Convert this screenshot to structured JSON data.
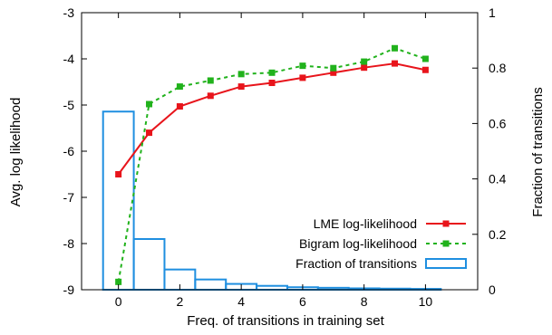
{
  "chart_data": {
    "type": "line",
    "xlabel": "Freq. of transitions in training set",
    "ylabel_left": "Avg. log likelihood",
    "ylabel_right": "Fraction of transitions",
    "xlim": [
      -1.2,
      11.7
    ],
    "ylim_left": [
      -9,
      -3
    ],
    "ylim_right": [
      0,
      1
    ],
    "x_ticks": [
      "0",
      "2",
      "4",
      "6",
      "8",
      "10"
    ],
    "y_left_ticks": [
      "-3",
      "-4",
      "-5",
      "-6",
      "-7",
      "-8",
      "-9"
    ],
    "y_right_ticks": [
      "1",
      "0.8",
      "0.6",
      "0.4",
      "0.2",
      "0"
    ],
    "legend_position": "bottom-right",
    "series": [
      {
        "name": "LME log-likelihood",
        "axis": "left",
        "style": "solid",
        "color": "#e8141b",
        "x": [
          0,
          1,
          2,
          3,
          4,
          5,
          6,
          7,
          8,
          9,
          10
        ],
        "y": [
          -6.5,
          -5.6,
          -5.03,
          -4.8,
          -4.6,
          -4.52,
          -4.41,
          -4.3,
          -4.19,
          -4.1,
          -4.24
        ]
      },
      {
        "name": "Bigram log-likelihood",
        "axis": "left",
        "style": "dashed",
        "color": "#21b21c",
        "x": [
          0,
          1,
          2,
          3,
          4,
          5,
          6,
          7,
          8,
          9,
          10
        ],
        "y": [
          -8.83,
          -4.98,
          -4.6,
          -4.47,
          -4.33,
          -4.3,
          -4.15,
          -4.2,
          -4.06,
          -3.77,
          -4.0
        ]
      },
      {
        "name": "Fraction of transitions",
        "axis": "right",
        "type": "bar",
        "color": "#1f8fe0",
        "x": [
          0,
          1,
          2,
          3,
          4,
          5,
          6,
          7,
          8,
          9,
          10
        ],
        "values": [
          0.643,
          0.183,
          0.073,
          0.037,
          0.021,
          0.014,
          0.009,
          0.007,
          0.005,
          0.004,
          0.003
        ]
      }
    ]
  }
}
